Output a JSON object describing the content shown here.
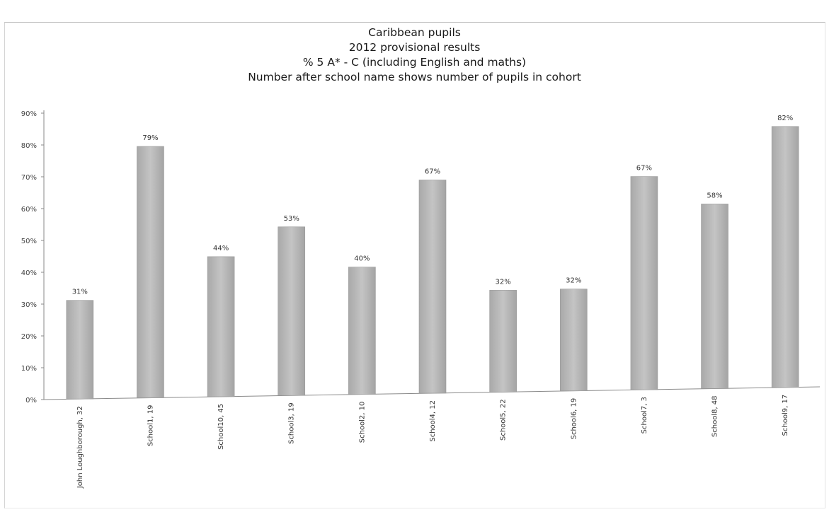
{
  "chart_data": {
    "type": "bar",
    "title_lines": [
      "Caribbean pupils",
      "2012 provisional results",
      "% 5 A* - C (including English and maths)",
      "Number after school name shows number of pupils in cohort"
    ],
    "categories": [
      "John Loughborough, 32",
      "School1, 19",
      "School10, 45",
      "School3, 19",
      "School2, 10",
      "School4, 12",
      "School5, 22",
      "School6, 19",
      "School7, 3",
      "School8, 48",
      "School9, 17"
    ],
    "values": [
      31,
      79,
      44,
      53,
      40,
      67,
      32,
      32,
      67,
      58,
      82
    ],
    "data_labels": [
      "31%",
      "79%",
      "44%",
      "53%",
      "40%",
      "67%",
      "32%",
      "32%",
      "67%",
      "58%",
      "82%"
    ],
    "y_ticks": [
      "0%",
      "10%",
      "20%",
      "30%",
      "40%",
      "50%",
      "60%",
      "70%",
      "80%",
      "90%"
    ],
    "ylim": [
      0,
      90
    ],
    "xlabel": "",
    "ylabel": "",
    "grid": false,
    "legend": "none",
    "bar_color": "#b5b5b5"
  }
}
